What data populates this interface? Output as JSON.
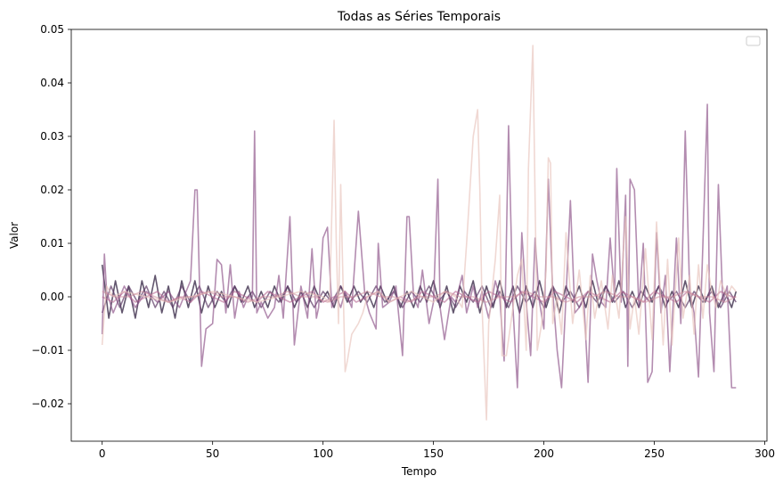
{
  "chart_data": {
    "type": "line",
    "title": "Todas as Séries Temporais",
    "xlabel": "Tempo",
    "ylabel": "Valor",
    "xlim": [
      -14,
      301
    ],
    "ylim": [
      -0.027,
      0.05
    ],
    "xticks": [
      0,
      50,
      100,
      150,
      200,
      250,
      300
    ],
    "yticks": [
      -0.02,
      -0.01,
      0.0,
      0.01,
      0.02,
      0.03,
      0.04,
      0.05
    ],
    "ytick_labels": [
      "−0.02",
      "−0.01",
      "0.00",
      "0.01",
      "0.02",
      "0.03",
      "0.04",
      "0.05"
    ],
    "grid": false,
    "legend": {
      "placement": "top-right",
      "entries": []
    },
    "series": [
      {
        "color": "#2d1e3e",
        "opacity": 0.75,
        "x": [
          0,
          3,
          6,
          9,
          12,
          15,
          18,
          21,
          24,
          27,
          30,
          33,
          36,
          39,
          42,
          45,
          48,
          51,
          54,
          57,
          60,
          63,
          66,
          69,
          72,
          75,
          78,
          81,
          84,
          87,
          90,
          93,
          96,
          99,
          102,
          105,
          108,
          111,
          114,
          117,
          120,
          123,
          126,
          129,
          132,
          135,
          138,
          141,
          144,
          147,
          150,
          153,
          156,
          159,
          162,
          165,
          168,
          171,
          174,
          177,
          180,
          183,
          186,
          189,
          192,
          195,
          198,
          201,
          204,
          207,
          210,
          213,
          216,
          219,
          222,
          225,
          228,
          231,
          234,
          237,
          240,
          243,
          246,
          249,
          252,
          255,
          258,
          261,
          264,
          267,
          270,
          273,
          276,
          279,
          282,
          285,
          287
        ],
        "y": [
          0.006,
          -0.004,
          0.003,
          -0.003,
          0.002,
          -0.004,
          0.003,
          -0.002,
          0.004,
          -0.003,
          0.002,
          -0.004,
          0.003,
          -0.002,
          0.003,
          -0.003,
          0.002,
          -0.002,
          0.001,
          -0.002,
          0.002,
          -0.001,
          0.002,
          -0.002,
          0.001,
          -0.002,
          0.002,
          -0.001,
          0.002,
          -0.002,
          0.001,
          -0.002,
          0.002,
          -0.001,
          0.001,
          -0.002,
          0.002,
          -0.001,
          0.002,
          -0.001,
          0.001,
          -0.002,
          0.002,
          -0.001,
          0.002,
          -0.002,
          0.001,
          -0.002,
          0.002,
          -0.001,
          0.003,
          -0.002,
          0.002,
          -0.003,
          0.002,
          -0.001,
          0.003,
          -0.003,
          0.002,
          -0.002,
          0.003,
          -0.002,
          0.002,
          -0.003,
          0.002,
          -0.002,
          0.003,
          -0.002,
          0.002,
          -0.003,
          0.002,
          -0.001,
          0.002,
          -0.002,
          0.003,
          -0.002,
          0.002,
          -0.001,
          0.003,
          -0.002,
          0.001,
          -0.002,
          0.002,
          -0.001,
          0.002,
          -0.002,
          0.001,
          -0.002,
          0.003,
          -0.002,
          0.002,
          -0.001,
          0.002,
          -0.002,
          0.001,
          -0.002,
          0.001
        ]
      },
      {
        "color": "#5e3a66",
        "opacity": 0.7,
        "x": [
          0,
          4,
          8,
          12,
          16,
          20,
          24,
          28,
          32,
          36,
          40,
          44,
          48,
          52,
          56,
          60,
          64,
          68,
          72,
          76,
          80,
          84,
          88,
          92,
          96,
          100,
          104,
          108,
          112,
          116,
          120,
          124,
          128,
          132,
          136,
          140,
          144,
          148,
          152,
          156,
          160,
          164,
          168,
          172,
          176,
          180,
          184,
          188,
          192,
          196,
          200,
          204,
          208,
          212,
          216,
          220,
          224,
          228,
          232,
          236,
          240,
          244,
          248,
          252,
          256,
          260,
          264,
          268,
          272,
          276,
          280,
          284,
          287
        ],
        "y": [
          -0.003,
          0.002,
          -0.002,
          0.002,
          -0.001,
          0.002,
          -0.002,
          0.001,
          -0.002,
          0.002,
          -0.001,
          0.002,
          -0.002,
          0.001,
          -0.001,
          0.002,
          -0.001,
          0.001,
          -0.002,
          0.001,
          -0.001,
          0.002,
          -0.001,
          0.001,
          -0.002,
          0.001,
          -0.001,
          0.002,
          -0.001,
          0.001,
          -0.001,
          0.002,
          -0.001,
          0.001,
          -0.002,
          0.001,
          -0.001,
          0.002,
          -0.001,
          0.001,
          -0.002,
          0.001,
          -0.001,
          0.002,
          -0.002,
          0.001,
          -0.002,
          0.002,
          -0.001,
          0.001,
          -0.002,
          0.002,
          -0.001,
          0.001,
          -0.002,
          0.001,
          -0.001,
          0.002,
          -0.001,
          0.001,
          -0.002,
          0.001,
          -0.001,
          0.002,
          -0.001,
          0.001,
          -0.002,
          0.001,
          -0.001,
          0.001,
          -0.002,
          0.001,
          -0.001
        ]
      },
      {
        "color": "#8a4e86",
        "opacity": 0.65,
        "x": [
          0,
          1,
          2,
          5,
          10,
          15,
          20,
          25,
          30,
          35,
          40,
          42,
          43,
          45,
          47,
          50,
          52,
          54,
          56,
          58,
          60,
          62,
          64,
          66,
          68,
          69,
          70,
          72,
          75,
          78,
          80,
          82,
          85,
          87,
          90,
          93,
          95,
          97,
          98,
          100,
          102,
          104,
          106,
          108,
          110,
          113,
          116,
          119,
          121,
          124,
          125,
          127,
          130,
          133,
          136,
          138,
          139,
          141,
          143,
          145,
          148,
          150,
          152,
          153,
          155,
          158,
          160,
          163,
          165,
          168,
          170,
          172,
          175,
          178,
          180,
          182,
          184,
          186,
          188,
          190,
          192,
          194,
          196,
          198,
          200,
          202,
          204,
          206,
          208,
          210,
          212,
          214,
          216,
          218,
          220,
          222,
          224,
          226,
          228,
          230,
          232,
          233,
          235,
          237,
          238,
          239,
          241,
          243,
          245,
          247,
          249,
          251,
          253,
          255,
          257,
          260,
          262,
          264,
          266,
          268,
          270,
          272,
          274,
          275,
          277,
          279,
          281,
          283,
          285,
          287
        ],
        "y": [
          -0.007,
          0.008,
          0.001,
          -0.003,
          0.002,
          -0.002,
          0.001,
          -0.001,
          0.001,
          -0.002,
          0.003,
          0.02,
          0.02,
          -0.013,
          -0.006,
          -0.005,
          0.007,
          0.006,
          -0.003,
          0.006,
          -0.004,
          0.001,
          -0.002,
          0.0,
          0.0,
          0.031,
          -0.003,
          -0.001,
          -0.004,
          -0.002,
          0.004,
          -0.004,
          0.015,
          -0.009,
          0.002,
          -0.004,
          0.009,
          -0.004,
          -0.002,
          0.011,
          0.013,
          -0.002,
          0.0,
          -0.002,
          0.001,
          -0.002,
          0.016,
          0.0,
          -0.003,
          -0.006,
          0.01,
          -0.002,
          -0.001,
          0.002,
          -0.011,
          0.015,
          0.015,
          0.0,
          -0.002,
          0.005,
          -0.005,
          -0.001,
          0.022,
          -0.002,
          -0.008,
          0.0,
          -0.001,
          0.004,
          -0.003,
          0.002,
          -0.002,
          0.001,
          -0.004,
          0.003,
          0.0,
          -0.012,
          0.032,
          -0.002,
          -0.017,
          0.012,
          -0.001,
          -0.011,
          0.011,
          -0.001,
          -0.006,
          0.022,
          0.001,
          -0.01,
          -0.017,
          0.0,
          0.018,
          -0.003,
          -0.002,
          0.0,
          -0.016,
          0.008,
          0.003,
          -0.001,
          -0.002,
          0.011,
          0.0,
          0.024,
          -0.001,
          0.019,
          -0.013,
          0.022,
          0.02,
          -0.002,
          0.01,
          -0.016,
          -0.014,
          0.012,
          -0.003,
          0.004,
          -0.014,
          0.011,
          -0.005,
          0.031,
          0.001,
          -0.003,
          -0.015,
          0.01,
          0.036,
          -0.003,
          -0.014,
          0.021,
          -0.001,
          0.002,
          -0.017,
          -0.017
        ]
      },
      {
        "color": "#b86b94",
        "opacity": 0.6,
        "x": [
          0,
          5,
          10,
          15,
          20,
          25,
          30,
          35,
          40,
          45,
          50,
          55,
          60,
          65,
          70,
          75,
          80,
          85,
          90,
          95,
          100,
          105,
          110,
          115,
          120,
          125,
          130,
          135,
          140,
          145,
          150,
          155,
          160,
          165,
          170,
          175,
          180,
          185,
          190,
          195,
          200,
          205,
          210,
          215,
          220,
          225,
          230,
          235,
          240,
          245,
          250,
          255,
          260,
          265,
          270,
          275,
          280,
          285,
          287
        ],
        "y": [
          0.0,
          -0.001,
          0.001,
          -0.001,
          0.0,
          0.001,
          -0.001,
          0.0,
          -0.001,
          0.001,
          0.0,
          -0.001,
          0.001,
          0.0,
          -0.001,
          0.001,
          0.0,
          -0.001,
          0.0,
          0.001,
          -0.001,
          0.0,
          0.001,
          -0.001,
          0.0,
          0.001,
          -0.001,
          0.0,
          -0.001,
          0.001,
          0.0,
          -0.001,
          0.001,
          0.0,
          -0.001,
          0.001,
          0.0,
          -0.001,
          0.001,
          0.0,
          -0.001,
          0.001,
          0.0,
          -0.001,
          0.001,
          0.0,
          -0.001,
          0.001,
          0.0,
          -0.001,
          0.001,
          0.0,
          -0.001,
          0.001,
          0.0,
          -0.001,
          0.001,
          0.0,
          0.0
        ]
      },
      {
        "color": "#e8c3bb",
        "opacity": 0.65,
        "x": [
          0,
          1,
          2,
          5,
          10,
          20,
          30,
          40,
          50,
          60,
          70,
          80,
          90,
          100,
          103,
          105,
          106,
          107,
          108,
          110,
          111,
          113,
          116,
          118,
          120,
          125,
          130,
          135,
          140,
          145,
          150,
          155,
          160,
          163,
          165,
          168,
          170,
          171,
          172,
          174,
          175,
          178,
          180,
          181,
          183,
          185,
          188,
          190,
          192,
          193,
          195,
          197,
          199,
          201,
          202,
          203,
          204,
          206,
          208,
          210,
          213,
          216,
          219,
          221,
          223,
          226,
          229,
          231,
          234,
          237,
          239,
          241,
          243,
          246,
          249,
          251,
          254,
          256,
          258,
          261,
          263,
          266,
          268,
          270,
          272,
          274,
          276,
          278,
          280,
          283,
          285,
          287
        ],
        "y": [
          -0.009,
          -0.003,
          0.002,
          0.0,
          0.001,
          0.0,
          -0.001,
          0.0,
          0.001,
          0.0,
          -0.001,
          0.0,
          0.001,
          0.0,
          -0.001,
          0.033,
          0.01,
          -0.005,
          0.021,
          -0.014,
          -0.012,
          -0.007,
          -0.005,
          -0.003,
          0.0,
          0.001,
          -0.001,
          0.0,
          0.001,
          0.0,
          -0.001,
          0.001,
          0.0,
          -0.002,
          0.01,
          0.03,
          0.035,
          0.02,
          -0.002,
          -0.023,
          -0.005,
          0.007,
          0.019,
          -0.011,
          -0.011,
          -0.005,
          0.004,
          0.007,
          -0.01,
          0.024,
          0.047,
          -0.01,
          -0.005,
          0.005,
          0.026,
          0.025,
          -0.005,
          0.0,
          -0.007,
          0.012,
          -0.005,
          0.005,
          -0.008,
          0.004,
          -0.004,
          0.003,
          -0.006,
          0.004,
          -0.004,
          0.015,
          -0.006,
          0.0,
          -0.007,
          0.009,
          -0.008,
          0.014,
          -0.009,
          0.007,
          -0.009,
          0.011,
          -0.004,
          0.004,
          -0.007,
          0.006,
          -0.004,
          0.006,
          0.001,
          -0.002,
          0.003,
          0.0,
          0.002,
          0.001
        ]
      },
      {
        "color": "#cf8f9f",
        "opacity": 0.55,
        "x": [
          0,
          6,
          12,
          18,
          24,
          30,
          36,
          42,
          48,
          54,
          60,
          66,
          72,
          78,
          84,
          90,
          96,
          102,
          108,
          114,
          120,
          126,
          132,
          138,
          144,
          150,
          156,
          162,
          168,
          174,
          180,
          186,
          192,
          198,
          204,
          210,
          216,
          222,
          228,
          234,
          240,
          246,
          252,
          258,
          264,
          270,
          276,
          282,
          287
        ],
        "y": [
          0.001,
          0.0,
          0.0,
          0.001,
          0.0,
          -0.001,
          0.0,
          0.0,
          0.001,
          0.0,
          0.0,
          -0.001,
          0.0,
          0.0,
          0.001,
          0.0,
          0.0,
          -0.001,
          0.0,
          0.0,
          0.001,
          0.0,
          0.0,
          -0.001,
          0.0,
          0.0,
          0.001,
          0.0,
          0.0,
          -0.001,
          0.0,
          0.0,
          0.001,
          0.0,
          0.0,
          -0.001,
          0.0,
          0.0,
          0.001,
          0.0,
          0.0,
          -0.001,
          0.0,
          0.0,
          0.001,
          0.0,
          0.0,
          -0.001,
          0.0
        ]
      }
    ]
  }
}
